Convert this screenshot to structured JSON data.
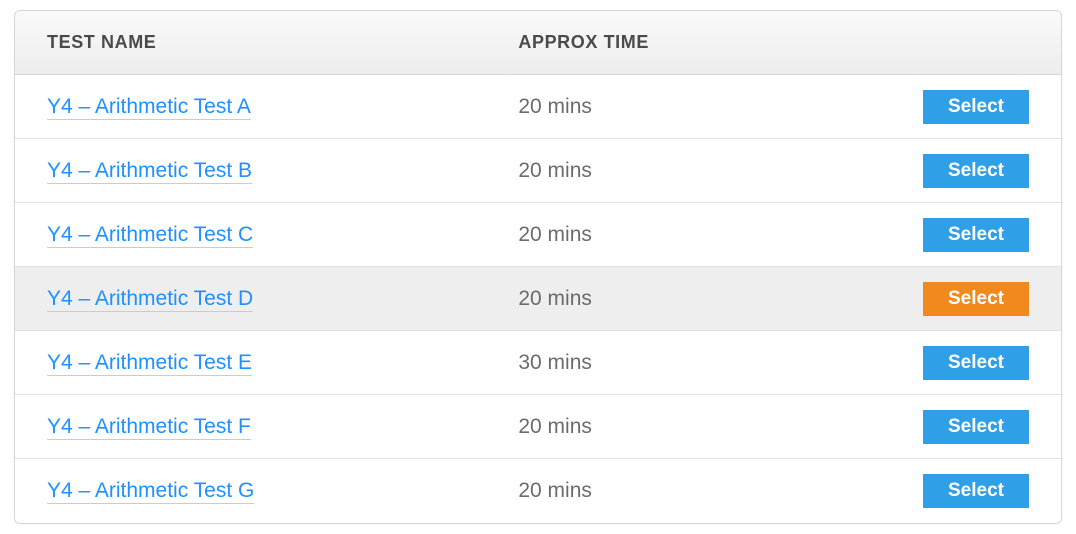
{
  "table": {
    "headers": {
      "name": "TEST NAME",
      "time": "APPROX TIME"
    },
    "button_label": "Select",
    "colors": {
      "link": "#1e90ff",
      "link_underline": "#a9d4fb",
      "time_text": "#6b6b6b",
      "header_text": "#4a4a4a",
      "button_default_bg": "#2f9fe8",
      "button_hover_bg": "#f08a1d",
      "row_hover_bg": "#eeeeee",
      "border": "#d6d6d6"
    },
    "rows": [
      {
        "name": "Y4 – Arithmetic Test A",
        "time": "20 mins",
        "hovered": false
      },
      {
        "name": "Y4 – Arithmetic Test B",
        "time": "20 mins",
        "hovered": false
      },
      {
        "name": "Y4 – Arithmetic Test C",
        "time": "20 mins",
        "hovered": false
      },
      {
        "name": "Y4 – Arithmetic Test D",
        "time": "20 mins",
        "hovered": true
      },
      {
        "name": "Y4 – Arithmetic Test E",
        "time": "30 mins",
        "hovered": false
      },
      {
        "name": "Y4 – Arithmetic Test F",
        "time": "20 mins",
        "hovered": false
      },
      {
        "name": "Y4 – Arithmetic Test G",
        "time": "20 mins",
        "hovered": false
      }
    ]
  }
}
